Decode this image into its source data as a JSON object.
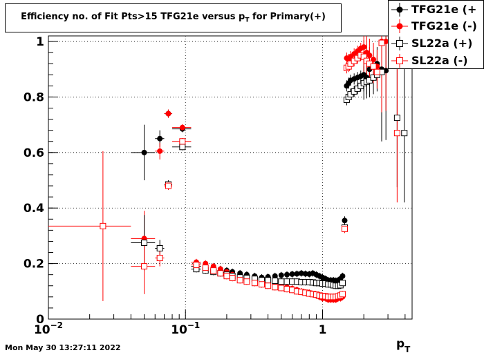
{
  "title": "Efficiency no. of Fit Pts>15 TFG21e versus p_T for Primary(+)",
  "title_parts": {
    "main": "Efficiency no. of Fit Pts>15 TFG21e versus p",
    "sub": "T",
    "tail": " for Primary(+)"
  },
  "timestamp": "Mon May 30 13:27:11 2022",
  "legend": [
    {
      "label": "TFG21e (+",
      "color": "#000000",
      "marker": "filled-circle"
    },
    {
      "label": "TFG21e (-)",
      "color": "#ff0000",
      "marker": "filled-circle"
    },
    {
      "label": "SL22a (+)",
      "color": "#000000",
      "marker": "open-square"
    },
    {
      "label": "SL22a (-)",
      "color": "#ff0000",
      "marker": "open-square"
    }
  ],
  "chart_data": {
    "type": "scatter",
    "xlabel": "p_T",
    "xlabel_parts": {
      "main": "p",
      "sub": "T"
    },
    "ylabel": "",
    "xscale": "log",
    "xlim": [
      0.01,
      4.5
    ],
    "ylim": [
      0,
      1.02
    ],
    "grid": true,
    "legend_position": "top-right",
    "x_ticks": [
      {
        "value": 0.01,
        "base": "10",
        "exp": "−2"
      },
      {
        "value": 0.1,
        "base": "10",
        "exp": "−1"
      },
      {
        "value": 1,
        "base": "1",
        "exp": ""
      }
    ],
    "y_ticks": [
      0,
      0.2,
      0.4,
      0.6,
      0.8,
      1
    ],
    "series": [
      {
        "name": "TFG21e (+",
        "color": "#000000",
        "marker": "filled-circle",
        "points": [
          [
            0.05,
            0.6
          ],
          [
            0.065,
            0.65
          ],
          [
            0.075,
            0.74
          ],
          [
            0.095,
            0.685
          ],
          [
            0.12,
            0.19
          ],
          [
            0.14,
            0.19
          ],
          [
            0.16,
            0.185
          ],
          [
            0.18,
            0.18
          ],
          [
            0.2,
            0.175
          ],
          [
            0.22,
            0.17
          ],
          [
            0.25,
            0.165
          ],
          [
            0.28,
            0.16
          ],
          [
            0.32,
            0.155
          ],
          [
            0.36,
            0.15
          ],
          [
            0.4,
            0.152
          ],
          [
            0.45,
            0.155
          ],
          [
            0.5,
            0.158
          ],
          [
            0.55,
            0.16
          ],
          [
            0.6,
            0.162
          ],
          [
            0.65,
            0.163
          ],
          [
            0.7,
            0.165
          ],
          [
            0.75,
            0.163
          ],
          [
            0.8,
            0.162
          ],
          [
            0.85,
            0.165
          ],
          [
            0.9,
            0.16
          ],
          [
            0.95,
            0.155
          ],
          [
            1.0,
            0.15
          ],
          [
            1.05,
            0.145
          ],
          [
            1.1,
            0.14
          ],
          [
            1.15,
            0.14
          ],
          [
            1.2,
            0.14
          ],
          [
            1.25,
            0.138
          ],
          [
            1.3,
            0.14
          ],
          [
            1.35,
            0.145
          ],
          [
            1.4,
            0.155
          ],
          [
            1.45,
            0.355
          ],
          [
            1.5,
            0.84
          ],
          [
            1.55,
            0.85
          ],
          [
            1.6,
            0.86
          ],
          [
            1.7,
            0.865
          ],
          [
            1.8,
            0.87
          ],
          [
            1.9,
            0.875
          ],
          [
            2.0,
            0.88
          ],
          [
            2.1,
            0.87
          ],
          [
            2.2,
            0.9
          ],
          [
            2.35,
            0.91
          ],
          [
            2.5,
            0.92
          ],
          [
            2.7,
            0.9
          ],
          [
            2.9,
            0.895
          ]
        ]
      },
      {
        "name": "TFG21e (-)",
        "color": "#ff0000",
        "marker": "filled-circle",
        "points": [
          [
            0.05,
            0.29
          ],
          [
            0.065,
            0.605
          ],
          [
            0.075,
            0.74
          ],
          [
            0.095,
            0.69
          ],
          [
            0.12,
            0.205
          ],
          [
            0.14,
            0.2
          ],
          [
            0.16,
            0.19
          ],
          [
            0.18,
            0.18
          ],
          [
            0.2,
            0.17
          ],
          [
            0.22,
            0.16
          ],
          [
            0.25,
            0.15
          ],
          [
            0.28,
            0.145
          ],
          [
            0.32,
            0.14
          ],
          [
            0.36,
            0.135
          ],
          [
            0.4,
            0.13
          ],
          [
            0.45,
            0.125
          ],
          [
            0.5,
            0.12
          ],
          [
            0.55,
            0.115
          ],
          [
            0.6,
            0.11
          ],
          [
            0.65,
            0.105
          ],
          [
            0.7,
            0.1
          ],
          [
            0.75,
            0.095
          ],
          [
            0.8,
            0.095
          ],
          [
            0.85,
            0.09
          ],
          [
            0.9,
            0.085
          ],
          [
            0.95,
            0.08
          ],
          [
            1.0,
            0.075
          ],
          [
            1.05,
            0.075
          ],
          [
            1.1,
            0.07
          ],
          [
            1.15,
            0.07
          ],
          [
            1.2,
            0.07
          ],
          [
            1.25,
            0.07
          ],
          [
            1.3,
            0.075
          ],
          [
            1.35,
            0.075
          ],
          [
            1.4,
            0.08
          ],
          [
            1.45,
            0.33
          ],
          [
            1.5,
            0.94
          ],
          [
            1.55,
            0.935
          ],
          [
            1.6,
            0.945
          ],
          [
            1.7,
            0.955
          ],
          [
            1.8,
            0.965
          ],
          [
            1.9,
            0.975
          ],
          [
            2.0,
            0.98
          ],
          [
            2.1,
            0.96
          ],
          [
            2.2,
            0.95
          ],
          [
            2.35,
            0.935
          ],
          [
            2.5,
            0.91
          ],
          [
            2.7,
            1.0
          ],
          [
            2.9,
            1.0
          ]
        ]
      },
      {
        "name": "SL22a (+)",
        "color": "#000000",
        "marker": "open-square",
        "points": [
          [
            0.05,
            0.275
          ],
          [
            0.065,
            0.255
          ],
          [
            0.075,
            0.485
          ],
          [
            0.095,
            0.62
          ],
          [
            0.12,
            0.18
          ],
          [
            0.14,
            0.175
          ],
          [
            0.16,
            0.17
          ],
          [
            0.18,
            0.165
          ],
          [
            0.2,
            0.16
          ],
          [
            0.22,
            0.155
          ],
          [
            0.25,
            0.15
          ],
          [
            0.28,
            0.148
          ],
          [
            0.32,
            0.145
          ],
          [
            0.36,
            0.14
          ],
          [
            0.4,
            0.14
          ],
          [
            0.45,
            0.138
          ],
          [
            0.5,
            0.135
          ],
          [
            0.55,
            0.135
          ],
          [
            0.6,
            0.135
          ],
          [
            0.65,
            0.135
          ],
          [
            0.7,
            0.133
          ],
          [
            0.75,
            0.133
          ],
          [
            0.8,
            0.133
          ],
          [
            0.85,
            0.132
          ],
          [
            0.9,
            0.13
          ],
          [
            0.95,
            0.13
          ],
          [
            1.0,
            0.128
          ],
          [
            1.05,
            0.128
          ],
          [
            1.1,
            0.125
          ],
          [
            1.15,
            0.125
          ],
          [
            1.2,
            0.122
          ],
          [
            1.25,
            0.12
          ],
          [
            1.3,
            0.12
          ],
          [
            1.35,
            0.122
          ],
          [
            1.4,
            0.13
          ],
          [
            1.45,
            0.33
          ],
          [
            1.5,
            0.79
          ],
          [
            1.55,
            0.8
          ],
          [
            1.6,
            0.81
          ],
          [
            1.7,
            0.82
          ],
          [
            1.8,
            0.83
          ],
          [
            1.9,
            0.84
          ],
          [
            2.0,
            0.85
          ],
          [
            2.1,
            0.855
          ],
          [
            2.2,
            0.86
          ],
          [
            2.35,
            0.87
          ],
          [
            2.5,
            0.88
          ],
          [
            2.7,
            0.89
          ],
          [
            3.5,
            0.725
          ],
          [
            3.95,
            0.67
          ]
        ]
      },
      {
        "name": "SL22a (-)",
        "color": "#ff0000",
        "marker": "open-square",
        "points": [
          [
            0.025,
            0.335
          ],
          [
            0.05,
            0.19
          ],
          [
            0.065,
            0.22
          ],
          [
            0.075,
            0.48
          ],
          [
            0.095,
            0.64
          ],
          [
            0.12,
            0.195
          ],
          [
            0.14,
            0.185
          ],
          [
            0.16,
            0.175
          ],
          [
            0.18,
            0.165
          ],
          [
            0.2,
            0.155
          ],
          [
            0.22,
            0.148
          ],
          [
            0.25,
            0.14
          ],
          [
            0.28,
            0.135
          ],
          [
            0.32,
            0.13
          ],
          [
            0.36,
            0.125
          ],
          [
            0.4,
            0.12
          ],
          [
            0.45,
            0.115
          ],
          [
            0.5,
            0.112
          ],
          [
            0.55,
            0.108
          ],
          [
            0.6,
            0.105
          ],
          [
            0.65,
            0.1
          ],
          [
            0.7,
            0.098
          ],
          [
            0.75,
            0.095
          ],
          [
            0.8,
            0.092
          ],
          [
            0.85,
            0.09
          ],
          [
            0.9,
            0.088
          ],
          [
            0.95,
            0.085
          ],
          [
            1.0,
            0.083
          ],
          [
            1.05,
            0.082
          ],
          [
            1.1,
            0.08
          ],
          [
            1.15,
            0.08
          ],
          [
            1.2,
            0.08
          ],
          [
            1.25,
            0.08
          ],
          [
            1.3,
            0.082
          ],
          [
            1.35,
            0.085
          ],
          [
            1.4,
            0.09
          ],
          [
            1.45,
            0.325
          ],
          [
            1.5,
            0.905
          ],
          [
            1.55,
            0.91
          ],
          [
            1.6,
            0.92
          ],
          [
            1.7,
            0.93
          ],
          [
            1.8,
            0.94
          ],
          [
            1.9,
            0.95
          ],
          [
            2.0,
            0.945
          ],
          [
            2.1,
            0.93
          ],
          [
            2.2,
            0.92
          ],
          [
            2.35,
            0.91
          ],
          [
            2.5,
            0.89
          ],
          [
            2.7,
            0.995
          ],
          [
            3.5,
            0.67
          ]
        ]
      }
    ]
  }
}
